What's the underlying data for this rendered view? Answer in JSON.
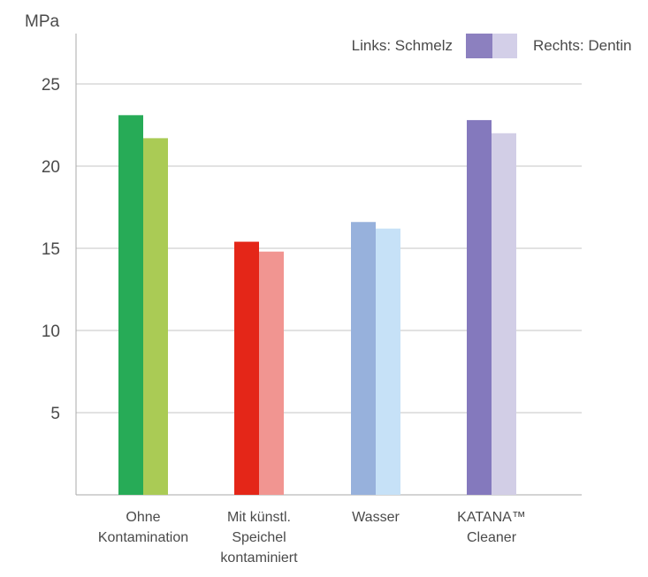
{
  "chart_data": {
    "type": "bar",
    "title": "",
    "ylabel": "MPa",
    "xlabel": "",
    "ylim": [
      0,
      28
    ],
    "yticks": [
      5,
      10,
      15,
      20,
      25
    ],
    "grid": true,
    "legend_placement": "top-right",
    "categories": [
      [
        "Ohne",
        "Kontamination"
      ],
      [
        "Mit künstl.",
        "Speichel",
        "kontaminiert"
      ],
      [
        "Wasser"
      ],
      [
        "KATANA™",
        "Cleaner"
      ]
    ],
    "legend": {
      "left_label": "Links: Schmelz",
      "right_label": "Rechts: Dentin",
      "left_color": "#8c80bf",
      "right_color": "#d3cfe8"
    },
    "series": [
      {
        "name": "Links: Schmelz",
        "values": [
          23.1,
          15.4,
          16.6,
          22.8
        ],
        "colors": [
          "#27ab57",
          "#e42618",
          "#97b1dc",
          "#8479bd"
        ]
      },
      {
        "name": "Rechts: Dentin",
        "values": [
          21.7,
          14.8,
          16.2,
          22.0
        ],
        "colors": [
          "#aacb55",
          "#f19591",
          "#c6e1f7",
          "#d2cee6"
        ]
      }
    ]
  }
}
